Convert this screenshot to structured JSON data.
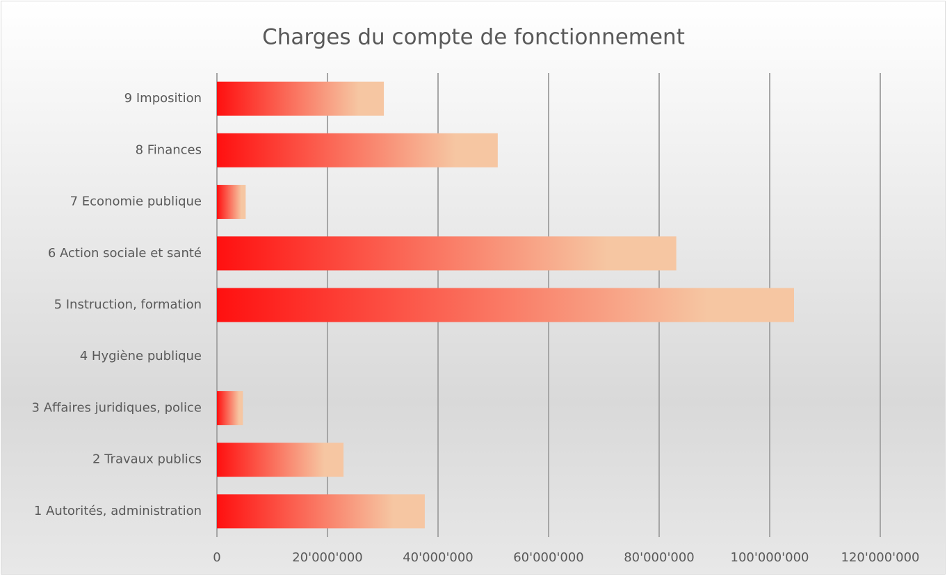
{
  "chart_data": {
    "type": "bar",
    "orientation": "horizontal",
    "title": "Charges du compte de fonctionnement",
    "categories": [
      "1 Autorités, administration",
      "2 Travaux publics",
      "3 Affaires juridiques, police",
      "4 Hygiène publique",
      "5 Instruction, formation",
      "6 Action sociale et santé",
      "7 Economie publique",
      "8 Finances",
      "9 Imposition"
    ],
    "values": [
      37600000,
      22900000,
      4700000,
      0,
      104400000,
      83100000,
      5200000,
      50800000,
      30200000
    ],
    "colors": [
      "#ff1010",
      "#f6c6a2"
    ],
    "xlim": [
      0,
      120000000
    ],
    "xticks": [
      0,
      {
        "value": 20000000,
        "label": "20'000'000"
      },
      {
        "value": 40000000,
        "label": "40'000'000"
      },
      {
        "value": 60000000,
        "label": "60'000'000"
      },
      {
        "value": 80000000,
        "label": "80'000'000"
      },
      {
        "value": 100000000,
        "label": "100'000'000"
      },
      {
        "value": 120000000,
        "label": "120'000'000"
      }
    ],
    "grid": true
  }
}
